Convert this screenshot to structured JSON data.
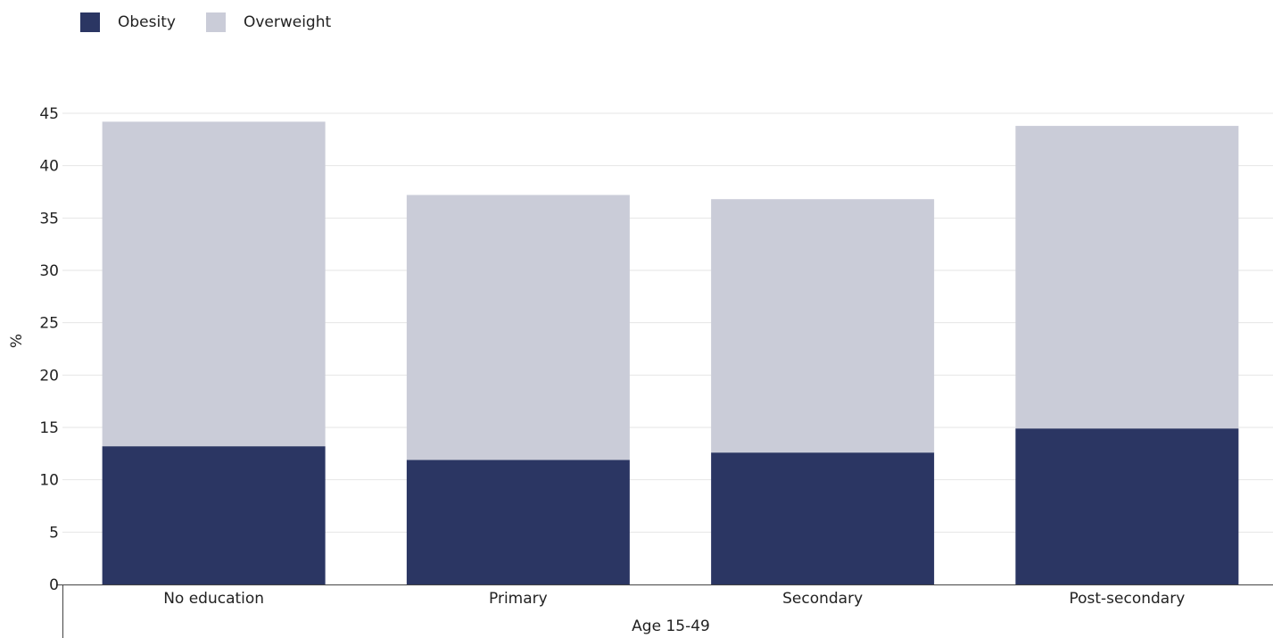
{
  "legend": {
    "items": [
      {
        "label": "Obesity",
        "color": "#2b3663"
      },
      {
        "label": "Overweight",
        "color": "#caccd8"
      }
    ]
  },
  "chart_data": {
    "type": "bar",
    "stacked": true,
    "categories": [
      "No education",
      "Primary",
      "Secondary",
      "Post-secondary"
    ],
    "series": [
      {
        "name": "Obesity",
        "color": "#2b3663",
        "values": [
          13.2,
          11.9,
          12.6,
          14.9
        ]
      },
      {
        "name": "Overweight",
        "color": "#caccd8",
        "values": [
          31.0,
          25.3,
          24.2,
          28.9
        ]
      }
    ],
    "totals": [
      44.2,
      37.2,
      36.8,
      43.8
    ],
    "ylabel": "%",
    "xlabel": "Age 15-49",
    "ylim": [
      0,
      45
    ],
    "yticks": [
      0,
      5,
      10,
      15,
      20,
      25,
      30,
      35,
      40,
      45
    ],
    "grid": true,
    "legend_position": "top-left",
    "gridline_color": "#e6e6e6",
    "axis_color": "#444444"
  }
}
